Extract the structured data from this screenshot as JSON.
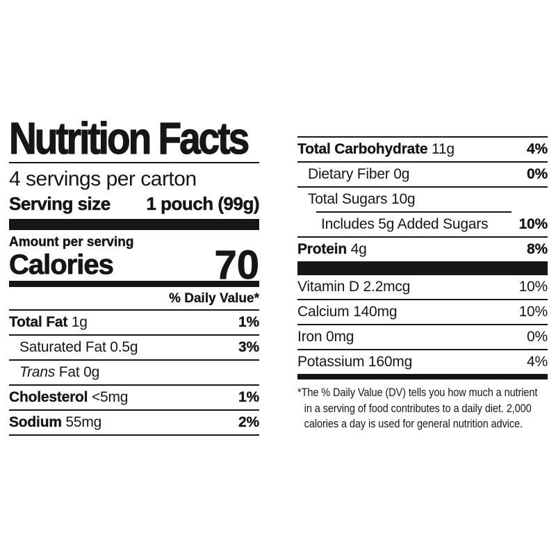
{
  "label": {
    "title": "Nutrition Facts",
    "servings_per_container": "4 servings per carton",
    "serving_size_label": "Serving size",
    "serving_size_value": "1 pouch (99g)",
    "amount_per_serving": "Amount per serving",
    "calories_label": "Calories",
    "calories_value": "70",
    "daily_value_header": "% Daily Value*",
    "left_rows": [
      {
        "bold": "Total Fat",
        "italic": "",
        "text": " 1g",
        "dv": "1%"
      },
      {
        "bold": "",
        "italic": "",
        "text": "Saturated Fat 0.5g",
        "dv": "3%"
      },
      {
        "bold": "",
        "italic": "Trans",
        "text": " Fat 0g",
        "dv": ""
      },
      {
        "bold": "Cholesterol",
        "italic": "",
        "text": " <5mg",
        "dv": "1%"
      },
      {
        "bold": "Sodium",
        "italic": "",
        "text": " 55mg",
        "dv": "2%"
      }
    ],
    "right_rows": [
      {
        "bold": "Total Carbohydrate",
        "italic": "",
        "text": " 11g",
        "dv": "4%"
      },
      {
        "bold": "",
        "italic": "",
        "text": "Dietary Fiber 0g",
        "dv": "0%"
      },
      {
        "bold": "",
        "italic": "",
        "text": "Total Sugars 10g",
        "dv": ""
      },
      {
        "bold": "",
        "italic": "",
        "text": "Includes 5g Added Sugars",
        "dv": "10%"
      },
      {
        "bold": "Protein",
        "italic": "",
        "text": " 4g",
        "dv": "8%"
      }
    ],
    "vitamin_rows": [
      {
        "text": "Vitamin D 2.2mcg",
        "dv": "10%"
      },
      {
        "text": "Calcium 140mg",
        "dv": "10%"
      },
      {
        "text": "Iron 0mg",
        "dv": "0%"
      },
      {
        "text": "Potassium 160mg",
        "dv": "4%"
      }
    ],
    "footnote_lines": [
      "*The % Daily Value (DV) tells you how much a nutrient",
      "in a serving of food contributes to a daily diet. 2,000",
      "calories a day is used for general nutrition advice."
    ]
  },
  "colors": {
    "ink": "#161616",
    "background": "#ffffff"
  }
}
